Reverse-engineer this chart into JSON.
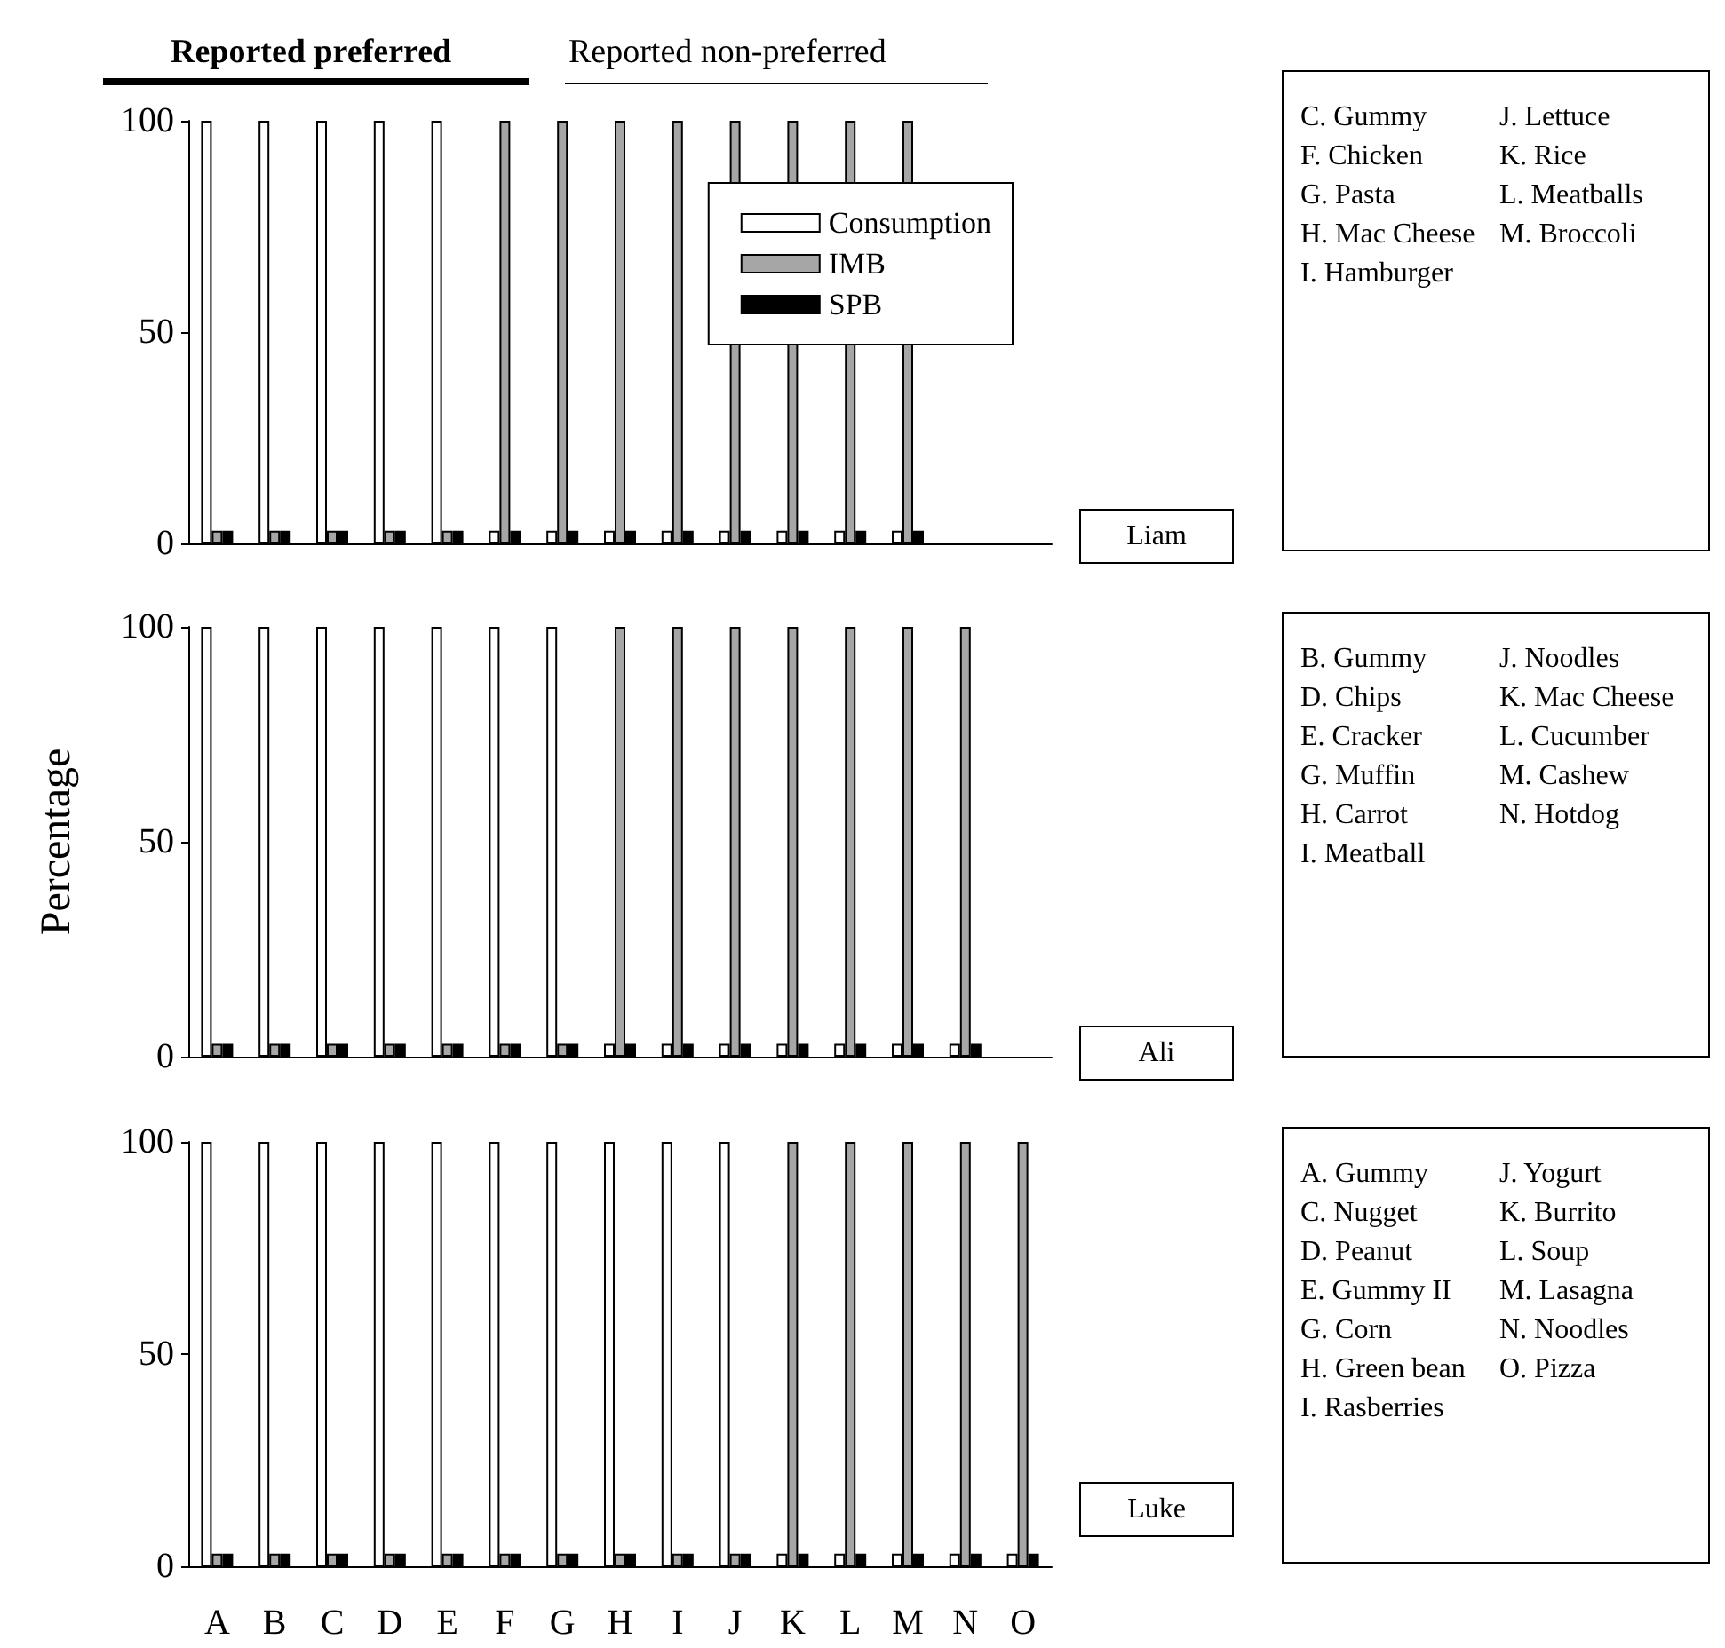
{
  "chart_data": [
    {
      "type": "bar",
      "title": "Reported preferred",
      "subtitle": "Reported non-preferred",
      "categories": [
        null,
        null,
        null,
        null,
        null,
        null,
        null,
        null,
        null,
        null,
        null,
        null,
        null,
        null,
        null
      ],
      "series": [
        {
          "name": "Consumption",
          "color": "#ffffff",
          "values": [
            100,
            100,
            100,
            100,
            100,
            3,
            3,
            3,
            3,
            3,
            3,
            3,
            3,
            null,
            null
          ]
        },
        {
          "name": "IMB",
          "color": "#a6a6a6",
          "values": [
            3,
            3,
            3,
            3,
            3,
            100,
            100,
            100,
            100,
            100,
            100,
            100,
            100,
            null,
            null
          ]
        },
        {
          "name": "SPB",
          "color": "#000000",
          "values": [
            3,
            3,
            3,
            3,
            3,
            3,
            3,
            3,
            3,
            3,
            3,
            3,
            3,
            null,
            null
          ]
        }
      ],
      "ylim": [
        0,
        100
      ],
      "yticks": [
        0,
        50,
        100
      ],
      "grid": false,
      "legend": "top right",
      "tick_labels": "y",
      "annotations": [
        "Liam",
        "C. Gummy",
        "F. Chicken",
        "G. Pasta",
        "H. Mac Cheese",
        "I. Hamburger",
        "J. Lettuce",
        "K. Rice",
        "L. Meatballs",
        "M. Broccoli"
      ]
    },
    {
      "type": "bar",
      "ylabel": "Percentage",
      "categories": [
        null,
        null,
        null,
        null,
        null,
        null,
        null,
        null,
        null,
        null,
        null,
        null,
        null,
        null,
        null
      ],
      "series": [
        {
          "color": "#ffffff",
          "values": [
            100,
            100,
            100,
            100,
            100,
            100,
            100,
            3,
            3,
            3,
            3,
            3,
            3,
            3,
            null
          ]
        },
        {
          "color": "#a6a6a6",
          "values": [
            3,
            3,
            3,
            3,
            3,
            3,
            3,
            100,
            100,
            100,
            100,
            100,
            100,
            100,
            null
          ]
        },
        {
          "color": "#000000",
          "values": [
            3,
            3,
            3,
            3,
            3,
            3,
            3,
            3,
            3,
            3,
            3,
            3,
            3,
            3,
            null
          ]
        }
      ],
      "ylim": [
        0,
        100
      ],
      "yticks": [
        0,
        50,
        100
      ],
      "grid": false,
      "tick_labels": "y",
      "annotations": [
        "Ali",
        "B. Gummy",
        "D. Chips",
        "E. Cracker",
        "G. Muffin",
        "H. Carrot",
        "I. Meatball",
        "J. Noodles",
        "K. Mac Cheese",
        "L. Cucumber",
        "M. Cashew",
        "N. Hotdog"
      ]
    },
    {
      "type": "bar",
      "categories": [
        "A",
        "B",
        "C",
        "D",
        "E",
        "F",
        "G",
        "H",
        "I",
        "J",
        "K",
        "L",
        "M",
        "N",
        "O"
      ],
      "series": [
        {
          "color": "#ffffff",
          "values": [
            100,
            100,
            100,
            100,
            100,
            100,
            100,
            100,
            100,
            100,
            3,
            3,
            3,
            3,
            3
          ]
        },
        {
          "color": "#a6a6a6",
          "values": [
            3,
            3,
            3,
            3,
            3,
            3,
            3,
            3,
            3,
            3,
            100,
            100,
            100,
            100,
            100
          ]
        },
        {
          "color": "#000000",
          "values": [
            3,
            3,
            3,
            3,
            3,
            3,
            3,
            3,
            3,
            3,
            3,
            3,
            3,
            3,
            3
          ]
        }
      ],
      "ylim": [
        0,
        100
      ],
      "yticks": [
        0,
        50,
        100
      ],
      "grid": false,
      "annotations": [
        "Luke",
        "A. Gummy",
        "C. Nugget",
        "D. Peanut",
        "E. Gummy II",
        "G. Corn",
        "H. Green bean",
        "I. Rasberries",
        "J. Yogurt",
        "K. Burrito",
        "L. Soup",
        "M. Lasagna",
        "N. Noodles",
        "O. Pizza"
      ]
    }
  ]
}
